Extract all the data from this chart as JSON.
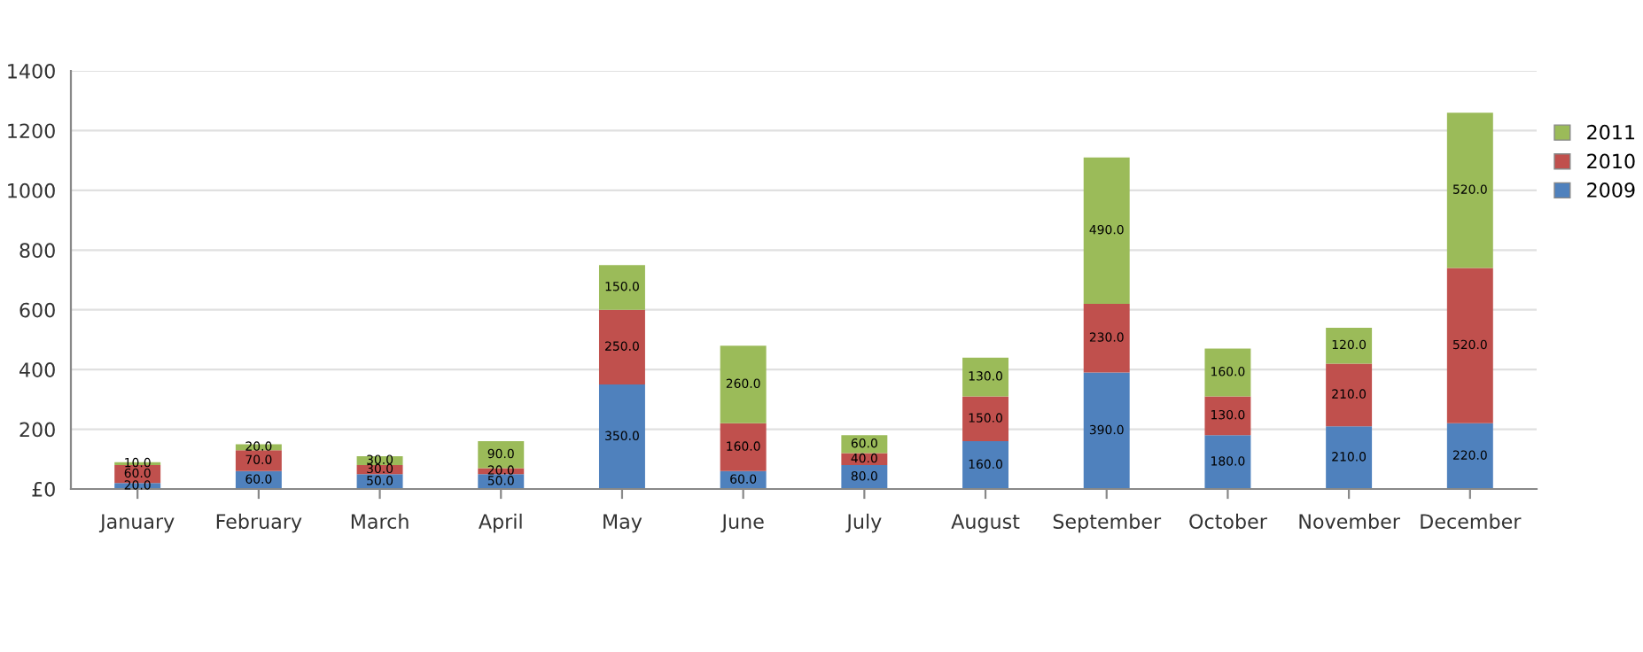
{
  "chart_data": {
    "type": "bar",
    "stacked": true,
    "categories": [
      "January",
      "February",
      "March",
      "April",
      "May",
      "June",
      "July",
      "August",
      "September",
      "October",
      "November",
      "December"
    ],
    "series": [
      {
        "name": "2009",
        "color": "#4f81bd",
        "values": [
          20,
          60,
          50,
          50,
          350,
          60,
          80,
          160,
          390,
          180,
          210,
          220
        ],
        "value_labels": [
          "20.0",
          "60.0",
          "50.0",
          "50.0",
          "350.0",
          "60.0",
          "80.0",
          "160.0",
          "390.0",
          "180.0",
          "210.0",
          "220.0"
        ]
      },
      {
        "name": "2010",
        "color": "#c0504d",
        "values": [
          60,
          70,
          30,
          20,
          250,
          160,
          40,
          150,
          230,
          130,
          210,
          520
        ],
        "value_labels": [
          "60.0",
          "70.0",
          "30.0",
          "20.0",
          "250.0",
          "160.0",
          "40.0",
          "150.0",
          "230.0",
          "130.0",
          "210.0",
          "520.0"
        ]
      },
      {
        "name": "2011",
        "color": "#9bbb59",
        "values": [
          10,
          20,
          30,
          90,
          150,
          260,
          60,
          130,
          490,
          160,
          120,
          520
        ],
        "value_labels": [
          "10.0",
          "20.0",
          "30.0",
          "90.0",
          "150.0",
          "260.0",
          "60.0",
          "130.0",
          "490.0",
          "160.0",
          "120.0",
          "520.0"
        ]
      }
    ],
    "ylim": [
      0,
      1400
    ],
    "yticks": [
      {
        "value": 0,
        "label": "£0"
      },
      200,
      400,
      600,
      800,
      1000,
      1200,
      1400
    ],
    "grid": "y",
    "legend": "right"
  }
}
